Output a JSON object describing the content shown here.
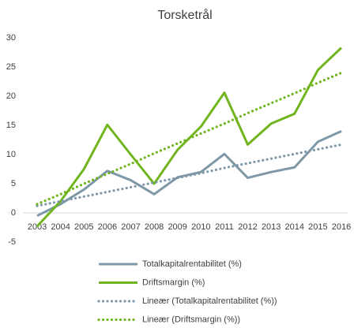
{
  "chart_data": {
    "type": "line",
    "title": "Torsketrål",
    "categories": [
      "2003",
      "2004",
      "2005",
      "2006",
      "2007",
      "2008",
      "2009",
      "2010",
      "2011",
      "2012",
      "2013",
      "2014",
      "2015",
      "2016"
    ],
    "ylim": [
      -5,
      30
    ],
    "yticks": [
      -5,
      0,
      5,
      10,
      15,
      20,
      25,
      30
    ],
    "grid": false,
    "series": [
      {
        "name": "Totalkapitalrentabilitet (%)",
        "color": "#7f98a8",
        "style": "solid",
        "values": [
          -0.5,
          1.5,
          4,
          7.2,
          5.6,
          3.2,
          6.1,
          7,
          10.1,
          6,
          7,
          7.8,
          12.2,
          14
        ]
      },
      {
        "name": "Driftsmargin (%)",
        "color": "#70b51e",
        "style": "solid",
        "values": [
          -2.3,
          2,
          7.5,
          15.1,
          10,
          5,
          10.8,
          14.8,
          20.6,
          11.7,
          15.3,
          17,
          24.5,
          28.3
        ]
      },
      {
        "name": "Lineær (Totalkapitalrentabilitet (%))",
        "color": "#7f98a8",
        "style": "dotted",
        "values": [
          1.2,
          2.0,
          2.8,
          3.6,
          4.4,
          5.2,
          6.0,
          6.8,
          7.7,
          8.5,
          9.3,
          10.1,
          10.9,
          11.7
        ]
      },
      {
        "name": "Lineær (Driftsmargin (%))",
        "color": "#70b51e",
        "style": "dotted",
        "values": [
          1.5,
          3.2,
          5.0,
          6.7,
          8.4,
          10.2,
          11.9,
          13.6,
          15.3,
          17.1,
          18.8,
          20.5,
          22.3,
          24.0
        ]
      }
    ]
  }
}
